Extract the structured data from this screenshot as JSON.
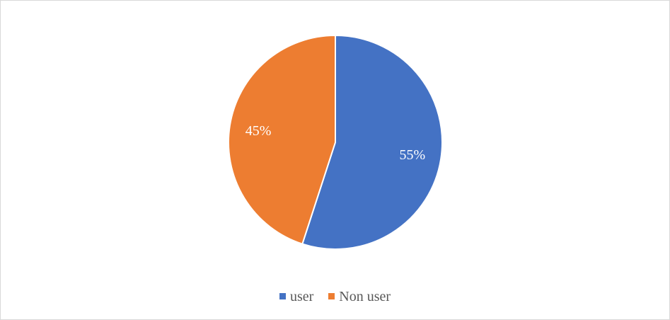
{
  "chart_data": {
    "type": "pie",
    "title": "",
    "categories": [
      "user",
      "Non user"
    ],
    "values": [
      55,
      45
    ],
    "data_labels": [
      "55%",
      "45%"
    ],
    "colors": [
      "#4472C4",
      "#ED7D31"
    ],
    "start_angle": "top, clockwise",
    "legend_position": "bottom"
  }
}
